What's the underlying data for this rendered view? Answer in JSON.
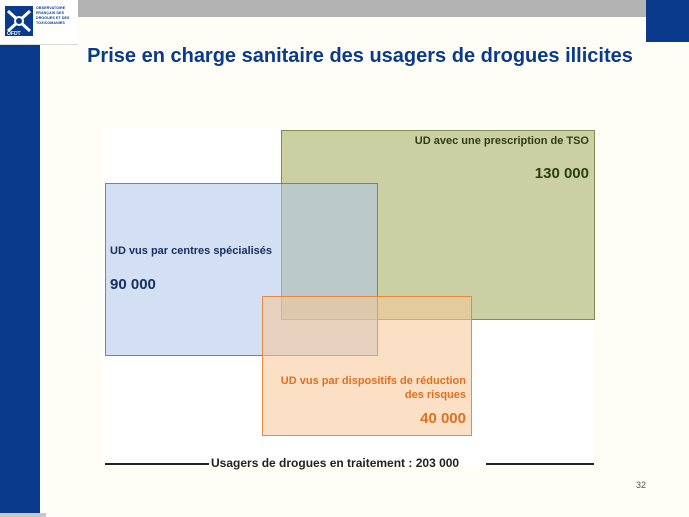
{
  "logo": {
    "emblem_text": "OFDT",
    "lines": [
      "OBSERVATOIRE",
      "FRANÇAIS DES",
      "DROGUES ET DES",
      "TOXICOMANIES"
    ]
  },
  "slide": {
    "title": "Prise en charge sanitaire des usagers de drogues illicites",
    "page_number": "32"
  },
  "diagram": {
    "boxes": [
      {
        "id": "tso",
        "label": "UD avec une prescription de TSO",
        "value": "130 000",
        "color": "#a9b168"
      },
      {
        "id": "centres",
        "label": "UD vus par centres spécialisés",
        "value": "90 000",
        "color": "#aec4e8"
      },
      {
        "id": "rdr",
        "label": "UD vus par dispositifs de réduction des risques",
        "value": "40 000",
        "color": "#f8c696"
      }
    ],
    "total_label": "Usagers de drogues en traitement : 203 000"
  },
  "colors": {
    "brand_blue": "#0a3a8c",
    "rdr_orange": "#e07020",
    "tso_green": "#2e3d10"
  }
}
